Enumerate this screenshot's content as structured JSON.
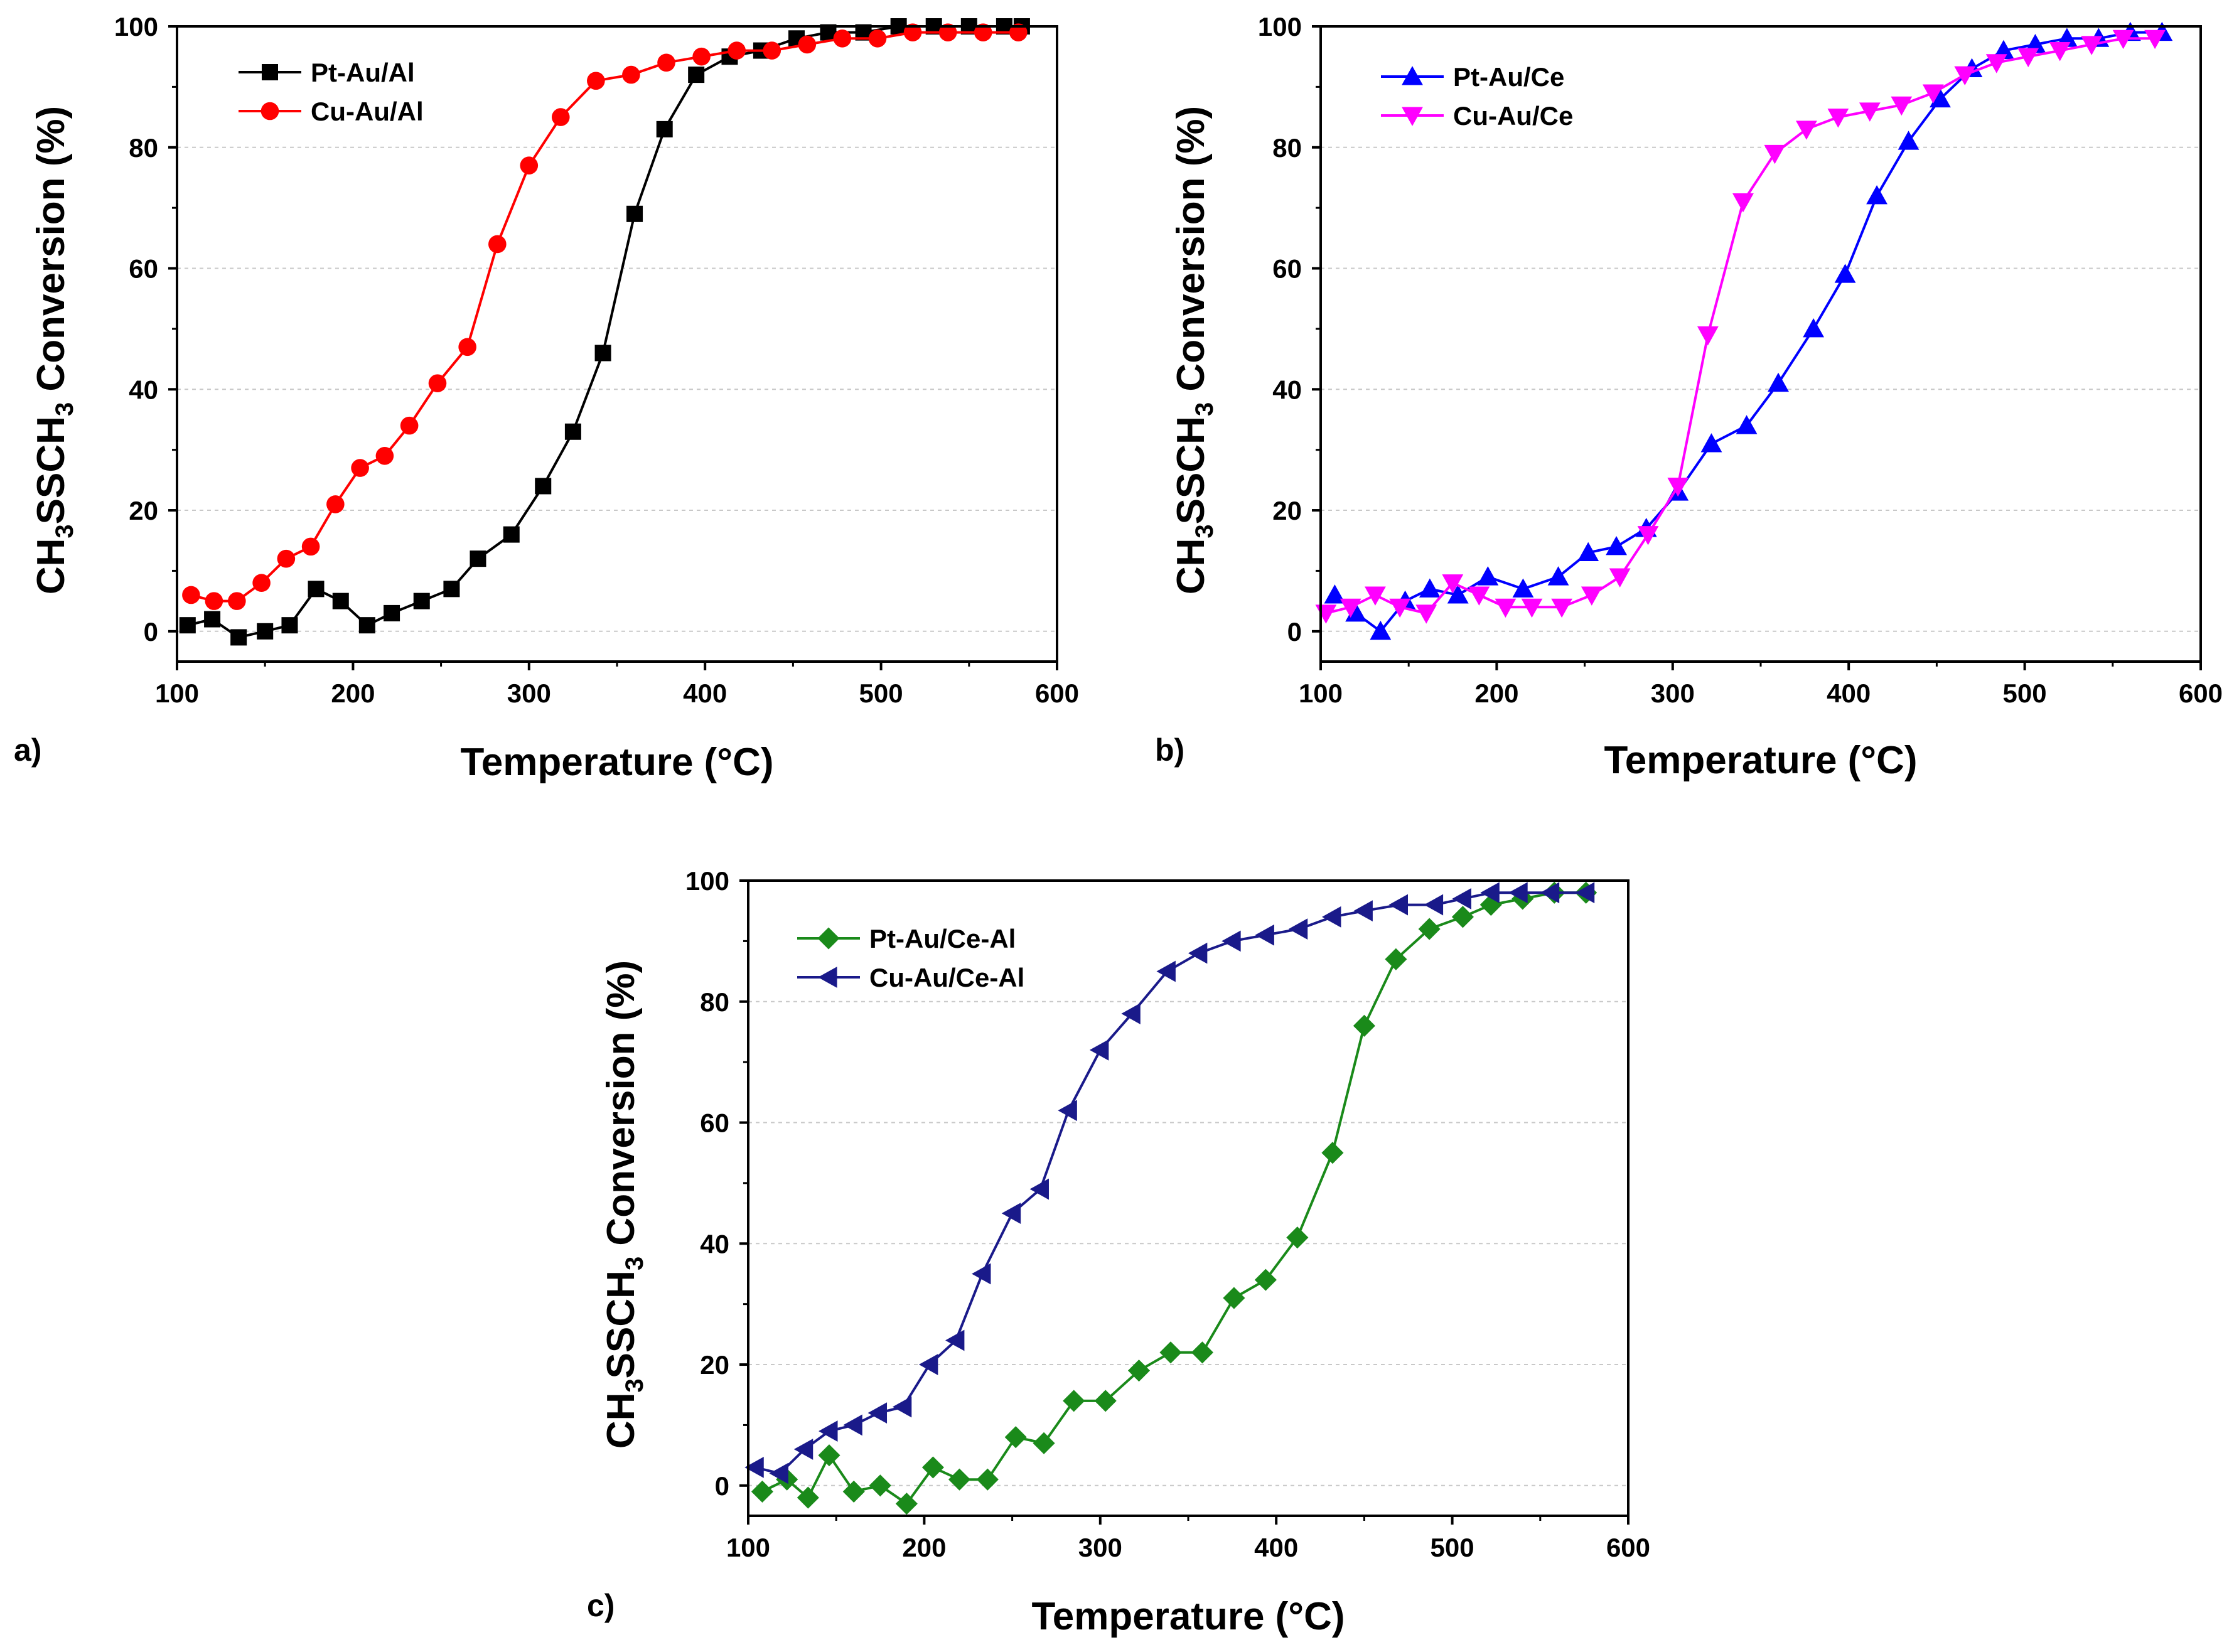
{
  "figure": {
    "panels": [
      "a)",
      "b)",
      "c)"
    ]
  },
  "chart_data": [
    {
      "type": "line",
      "panel_label": "a)",
      "xlabel": "Temperature (°C)",
      "ylabel_main": "CH",
      "ylabel_sub1": "3",
      "ylabel_mid": "SSCH",
      "ylabel_sub2": "3",
      "ylabel_tail": " Conversion (%)",
      "xlim": [
        100,
        600
      ],
      "ylim": [
        -5,
        100
      ],
      "xticks": [
        100,
        200,
        300,
        400,
        500,
        600
      ],
      "yticks": [
        0,
        20,
        40,
        60,
        80,
        100
      ],
      "grid": true,
      "legend_position": "top-left",
      "series": [
        {
          "name": "Pt-Au/Al",
          "color": "#000000",
          "marker": "square",
          "x": [
            106,
            120,
            135,
            150,
            164,
            179,
            193,
            208,
            222,
            239,
            256,
            271,
            290,
            308,
            325,
            342,
            360,
            377,
            395,
            414,
            432,
            452,
            470,
            490,
            510,
            530,
            550,
            570,
            580
          ],
          "y": [
            1,
            2,
            -1,
            0,
            1,
            7,
            5,
            1,
            3,
            5,
            7,
            12,
            16,
            24,
            33,
            46,
            69,
            83,
            92,
            95,
            96,
            98,
            99,
            99,
            100,
            100,
            100,
            100,
            100
          ]
        },
        {
          "name": "Cu-Au/Al",
          "color": "#ff0000",
          "marker": "circle",
          "x": [
            108,
            121,
            134,
            148,
            162,
            176,
            190,
            204,
            218,
            232,
            248,
            265,
            282,
            300,
            318,
            338,
            358,
            378,
            398,
            418,
            438,
            458,
            478,
            498,
            518,
            538,
            558,
            578
          ],
          "y": [
            6,
            5,
            5,
            8,
            12,
            14,
            21,
            27,
            29,
            34,
            41,
            47,
            64,
            77,
            85,
            91,
            92,
            94,
            95,
            96,
            96,
            97,
            98,
            98,
            99,
            99,
            99,
            99
          ]
        }
      ]
    },
    {
      "type": "line",
      "panel_label": "b)",
      "xlabel": "Temperature (°C)",
      "ylabel_main": "CH",
      "ylabel_sub1": "3",
      "ylabel_mid": "SSCH",
      "ylabel_sub2": "3",
      "ylabel_tail": " Conversion (%)",
      "xlim": [
        100,
        600
      ],
      "ylim": [
        -5,
        100
      ],
      "xticks": [
        100,
        200,
        300,
        400,
        500,
        600
      ],
      "yticks": [
        0,
        20,
        40,
        60,
        80,
        100
      ],
      "grid": true,
      "legend_position": "top-left",
      "series": [
        {
          "name": "Pt-Au/Ce",
          "color": "#0000ff",
          "marker": "triangle-up",
          "x": [
            108,
            120,
            134,
            148,
            162,
            178,
            195,
            215,
            235,
            252,
            268,
            285,
            303,
            322,
            342,
            360,
            380,
            398,
            416,
            434,
            452,
            470,
            488,
            506,
            524,
            542,
            560,
            578
          ],
          "y": [
            6,
            3,
            0,
            5,
            7,
            6,
            9,
            7,
            9,
            13,
            14,
            17,
            23,
            31,
            34,
            41,
            50,
            59,
            72,
            81,
            88,
            93,
            96,
            97,
            98,
            98,
            99,
            99
          ]
        },
        {
          "name": "Cu-Au/Ce",
          "color": "#ff00ff",
          "marker": "triangle-down",
          "x": [
            103,
            117,
            131,
            145,
            160,
            175,
            190,
            205,
            220,
            237,
            254,
            270,
            286,
            303,
            320,
            340,
            358,
            376,
            394,
            412,
            430,
            448,
            466,
            484,
            502,
            520,
            538,
            556,
            574
          ],
          "y": [
            3,
            4,
            6,
            4,
            3,
            8,
            6,
            4,
            4,
            4,
            6,
            9,
            16,
            24,
            49,
            71,
            79,
            83,
            85,
            86,
            87,
            89,
            92,
            94,
            95,
            96,
            97,
            98,
            98
          ]
        }
      ]
    },
    {
      "type": "line",
      "panel_label": "c)",
      "xlabel": "Temperature (°C)",
      "ylabel_main": "CH",
      "ylabel_sub1": "3",
      "ylabel_mid": "SSCH",
      "ylabel_sub2": "3",
      "ylabel_tail": " Conversion (%)",
      "xlim": [
        100,
        600
      ],
      "ylim": [
        -5,
        100
      ],
      "xticks": [
        100,
        200,
        300,
        400,
        500,
        600
      ],
      "yticks": [
        0,
        20,
        40,
        60,
        80,
        100
      ],
      "grid": true,
      "legend_position": "top-left",
      "series": [
        {
          "name": "Pt-Au/Ce-Al",
          "color": "#1a8a1a",
          "marker": "diamond",
          "x": [
            108,
            122,
            134,
            146,
            160,
            175,
            190,
            205,
            220,
            236,
            252,
            268,
            285,
            303,
            322,
            340,
            358,
            376,
            394,
            412,
            432,
            450,
            468,
            487,
            506,
            522,
            540,
            558,
            576
          ],
          "y": [
            -1,
            1,
            -2,
            5,
            -1,
            0,
            -3,
            3,
            1,
            1,
            8,
            7,
            14,
            14,
            19,
            22,
            22,
            31,
            34,
            41,
            55,
            76,
            87,
            92,
            94,
            96,
            97,
            98,
            98
          ]
        },
        {
          "name": "Cu-Au/Ce-Al",
          "color": "#1a1a8a",
          "marker": "triangle-left",
          "x": [
            104,
            118,
            132,
            146,
            160,
            174,
            188,
            203,
            218,
            233,
            250,
            266,
            282,
            300,
            318,
            338,
            356,
            375,
            394,
            413,
            432,
            450,
            470,
            490,
            506,
            522,
            538,
            556,
            576
          ],
          "y": [
            3,
            2,
            6,
            9,
            10,
            12,
            13,
            20,
            24,
            35,
            45,
            49,
            62,
            72,
            78,
            85,
            88,
            90,
            91,
            92,
            94,
            95,
            96,
            96,
            97,
            98,
            98,
            98,
            98
          ]
        }
      ]
    }
  ]
}
